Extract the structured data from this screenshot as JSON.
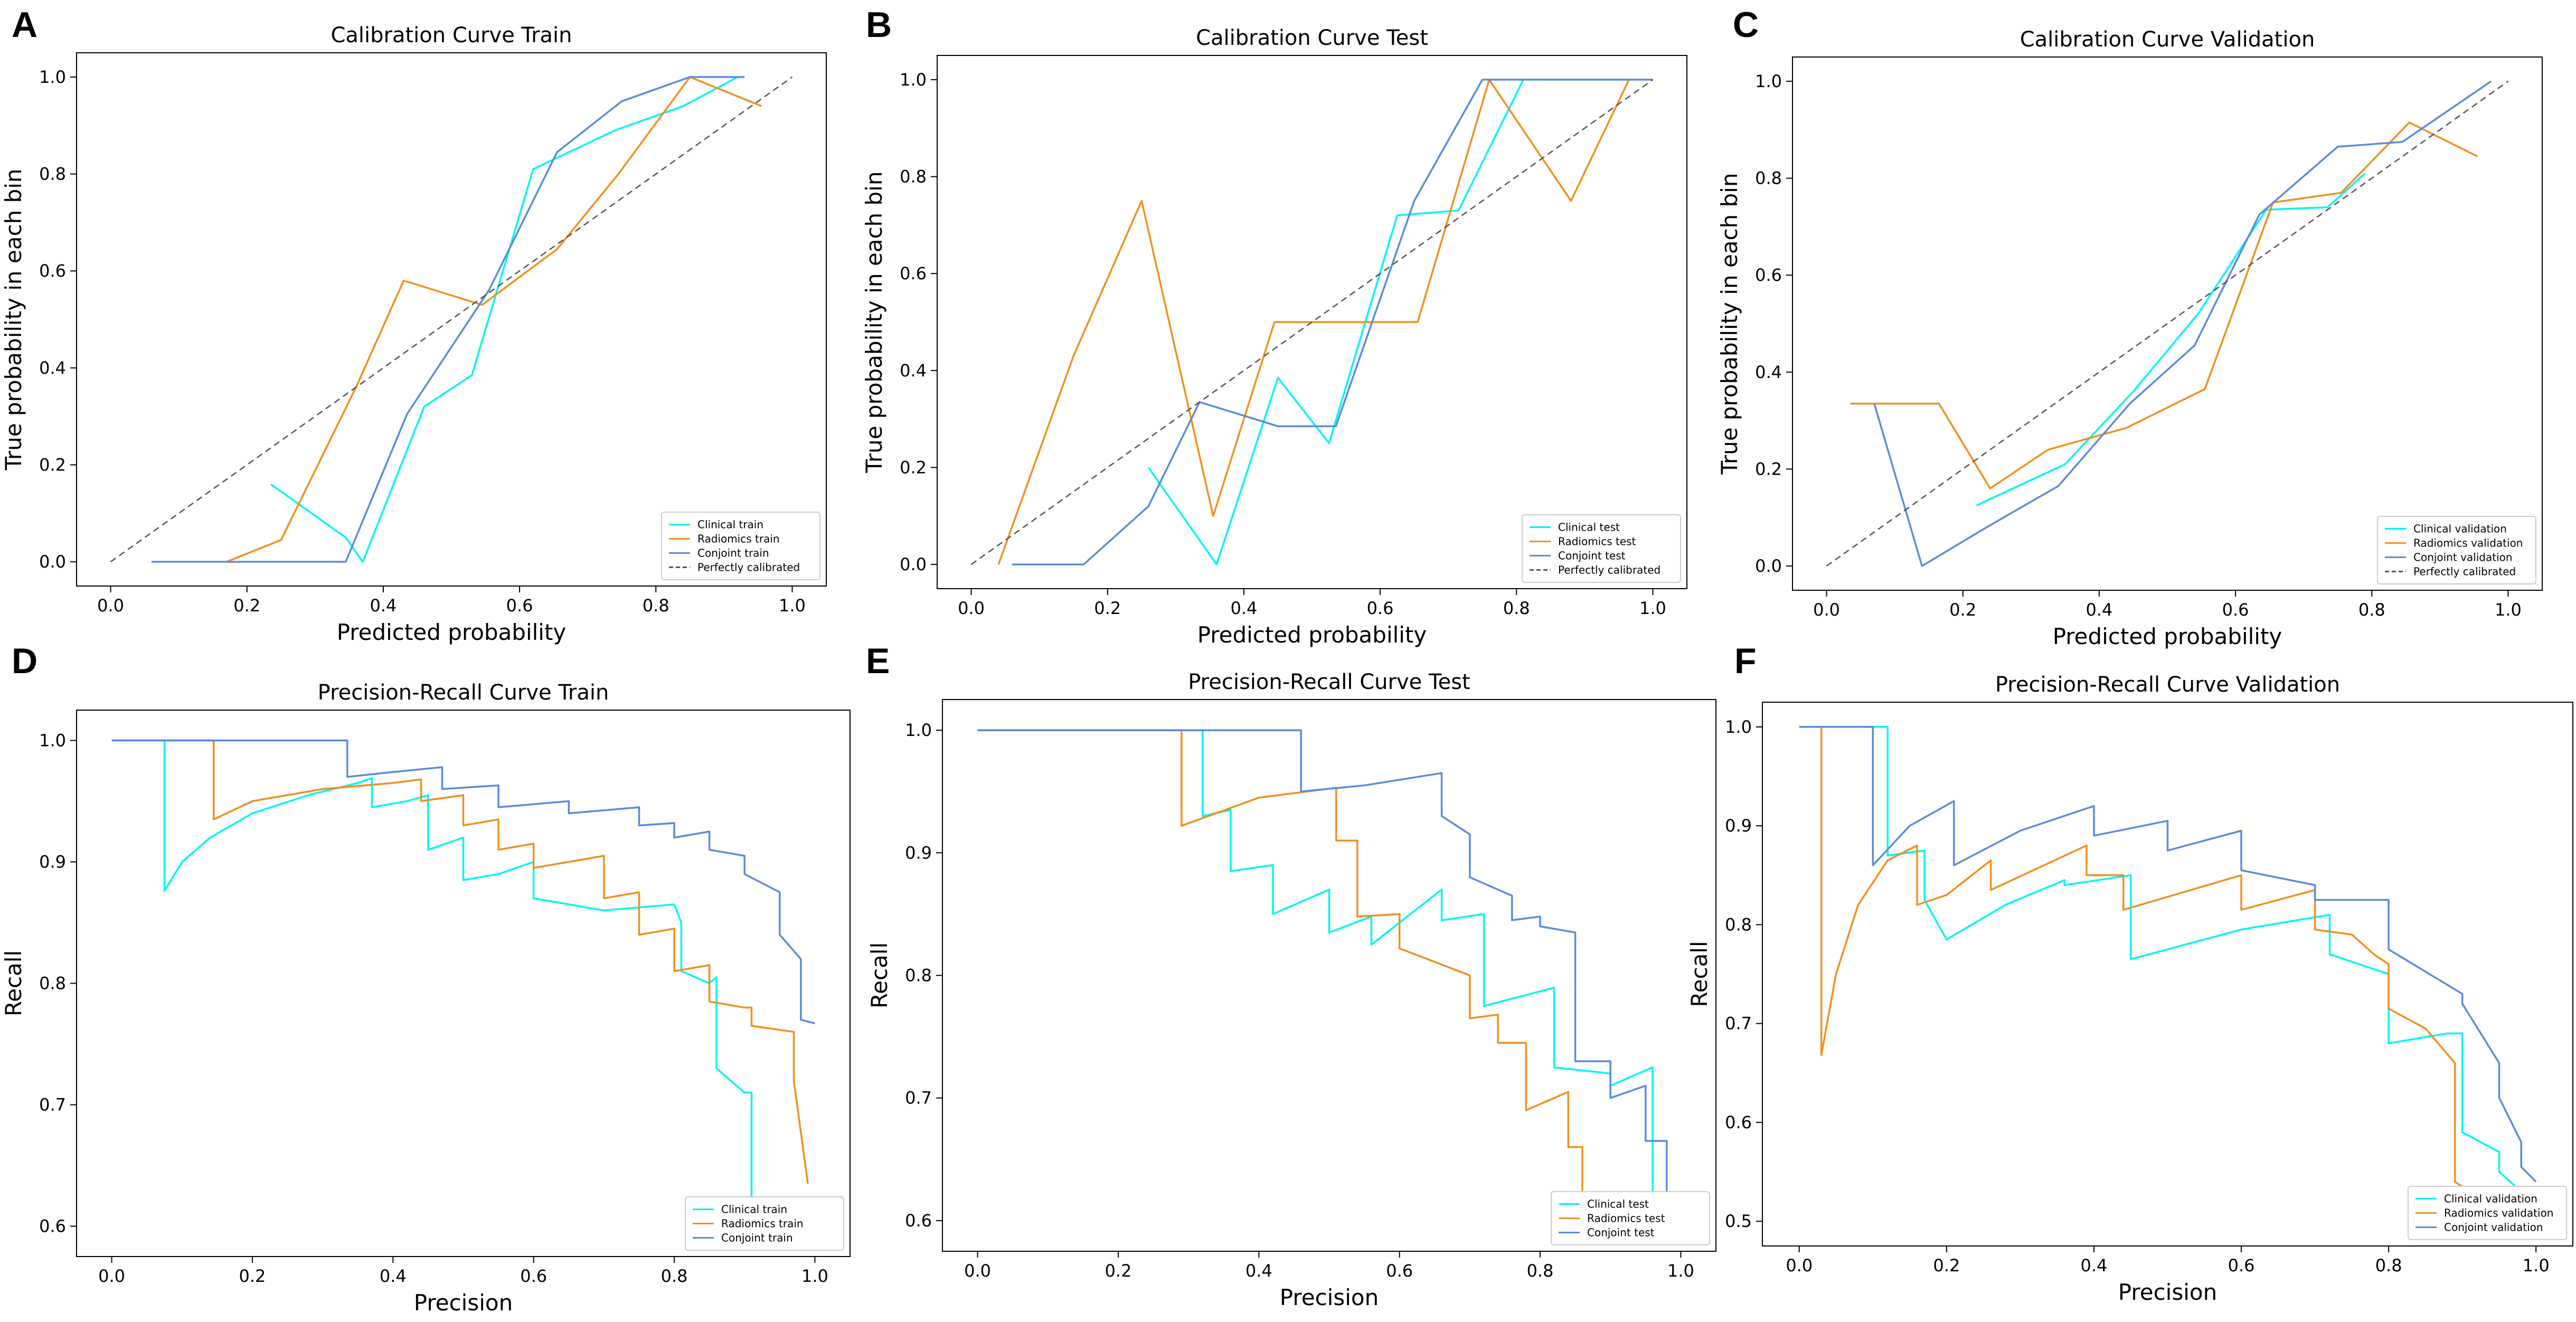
{
  "colors": {
    "clinical": "#00f5f5",
    "radiomics": "#f0901e",
    "conjoint": "#5b8bdc",
    "perfect": "#555555"
  },
  "chart_data": [
    {
      "letter": "A",
      "type": "line",
      "title": "Calibration Curve Train",
      "xlabel": "Predicted probability",
      "ylabel": "True probability in each bin",
      "xlim": [
        -0.05,
        1.05
      ],
      "ylim": [
        -0.05,
        1.05
      ],
      "xticks": [
        0.0,
        0.2,
        0.4,
        0.6,
        0.8,
        1.0
      ],
      "yticks": [
        0.0,
        0.2,
        0.4,
        0.6,
        0.8,
        1.0
      ],
      "xtick_labels": [
        "0.0",
        "0.2",
        "0.4",
        "0.6",
        "0.8",
        "1.0"
      ],
      "ytick_labels": [
        "0.0",
        "0.2",
        "0.4",
        "0.6",
        "0.8",
        "1.0"
      ],
      "legend_position": "bottom-right",
      "series": [
        {
          "name": "Clinical train",
          "key": "clinical",
          "x": [
            0.235,
            0.345,
            0.37,
            0.46,
            0.53,
            0.62,
            0.74,
            0.84,
            0.92
          ],
          "y": [
            0.16,
            0.05,
            0.0,
            0.32,
            0.385,
            0.81,
            0.89,
            0.94,
            1.0
          ]
        },
        {
          "name": "Radiomics train",
          "key": "radiomics",
          "x": [
            0.17,
            0.25,
            0.36,
            0.43,
            0.545,
            0.655,
            0.745,
            0.85,
            0.955
          ],
          "y": [
            0.0,
            0.045,
            0.36,
            0.58,
            0.53,
            0.645,
            0.8,
            1.0,
            0.94
          ]
        },
        {
          "name": "Conjoint train",
          "key": "conjoint",
          "x": [
            0.06,
            0.15,
            0.25,
            0.345,
            0.435,
            0.555,
            0.655,
            0.75,
            0.85,
            0.93
          ],
          "y": [
            0.0,
            0.0,
            0.0,
            0.0,
            0.305,
            0.56,
            0.845,
            0.95,
            1.0,
            1.0
          ]
        },
        {
          "name": "Perfectly calibrated",
          "key": "perfect",
          "dashed": true,
          "x": [
            0.0,
            1.0
          ],
          "y": [
            0.0,
            1.0
          ]
        }
      ]
    },
    {
      "letter": "B",
      "type": "line",
      "title": "Calibration Curve Test",
      "xlabel": "Predicted probability",
      "ylabel": "True probability in each bin",
      "xlim": [
        -0.05,
        1.05
      ],
      "ylim": [
        -0.05,
        1.05
      ],
      "xticks": [
        0.0,
        0.2,
        0.4,
        0.6,
        0.8,
        1.0
      ],
      "yticks": [
        0.0,
        0.2,
        0.4,
        0.6,
        0.8,
        1.0
      ],
      "xtick_labels": [
        "0.0",
        "0.2",
        "0.4",
        "0.6",
        "0.8",
        "1.0"
      ],
      "ytick_labels": [
        "0.0",
        "0.2",
        "0.4",
        "0.6",
        "0.8",
        "1.0"
      ],
      "legend_position": "bottom-right",
      "series": [
        {
          "name": "Clinical test",
          "key": "clinical",
          "x": [
            0.26,
            0.36,
            0.45,
            0.525,
            0.625,
            0.715,
            0.81,
            0.96
          ],
          "y": [
            0.2,
            0.0,
            0.385,
            0.25,
            0.72,
            0.73,
            1.0,
            1.0
          ]
        },
        {
          "name": "Radiomics test",
          "key": "radiomics",
          "x": [
            0.04,
            0.15,
            0.25,
            0.355,
            0.445,
            0.545,
            0.655,
            0.76,
            0.88,
            0.965
          ],
          "y": [
            0.0,
            0.43,
            0.75,
            0.1,
            0.5,
            0.5,
            0.5,
            1.0,
            0.75,
            1.0
          ]
        },
        {
          "name": "Conjoint test",
          "key": "conjoint",
          "x": [
            0.06,
            0.165,
            0.26,
            0.335,
            0.45,
            0.535,
            0.65,
            0.75,
            0.85,
            0.955,
            1.0
          ],
          "y": [
            0.0,
            0.0,
            0.12,
            0.335,
            0.285,
            0.285,
            0.75,
            1.0,
            1.0,
            1.0,
            1.0
          ]
        },
        {
          "name": "Perfectly calibrated",
          "key": "perfect",
          "dashed": true,
          "x": [
            0.0,
            1.0
          ],
          "y": [
            0.0,
            1.0
          ]
        }
      ]
    },
    {
      "letter": "C",
      "type": "line",
      "title": "Calibration Curve Validation",
      "xlabel": "Predicted probability",
      "ylabel": "True probability in each bin",
      "xlim": [
        -0.05,
        1.05
      ],
      "ylim": [
        -0.05,
        1.05
      ],
      "xticks": [
        0.0,
        0.2,
        0.4,
        0.6,
        0.8,
        1.0
      ],
      "yticks": [
        0.0,
        0.2,
        0.4,
        0.6,
        0.8,
        1.0
      ],
      "xtick_labels": [
        "0.0",
        "0.2",
        "0.4",
        "0.6",
        "0.8",
        "1.0"
      ],
      "ytick_labels": [
        "0.0",
        "0.2",
        "0.4",
        "0.6",
        "0.8",
        "1.0"
      ],
      "legend_position": "bottom-right",
      "series": [
        {
          "name": "Clinical validation",
          "key": "clinical",
          "x": [
            0.22,
            0.35,
            0.45,
            0.545,
            0.645,
            0.735,
            0.79
          ],
          "y": [
            0.125,
            0.21,
            0.36,
            0.52,
            0.735,
            0.74,
            0.81
          ]
        },
        {
          "name": "Radiomics validation",
          "key": "radiomics",
          "x": [
            0.035,
            0.165,
            0.24,
            0.325,
            0.44,
            0.555,
            0.655,
            0.755,
            0.855,
            0.955
          ],
          "y": [
            0.335,
            0.335,
            0.16,
            0.24,
            0.285,
            0.365,
            0.75,
            0.77,
            0.915,
            0.845
          ]
        },
        {
          "name": "Conjoint validation",
          "key": "conjoint",
          "x": [
            0.07,
            0.14,
            0.235,
            0.34,
            0.445,
            0.54,
            0.635,
            0.75,
            0.845,
            0.975
          ],
          "y": [
            0.335,
            0.0,
            0.08,
            0.165,
            0.335,
            0.455,
            0.725,
            0.865,
            0.875,
            1.0
          ]
        },
        {
          "name": "Perfectly calibrated",
          "key": "perfect",
          "dashed": true,
          "x": [
            0.0,
            1.0
          ],
          "y": [
            0.0,
            1.0
          ]
        }
      ]
    },
    {
      "letter": "D",
      "type": "line",
      "title": "Precision-Recall Curve Train",
      "xlabel": "Precision",
      "ylabel": "Recall",
      "xlim": [
        -0.05,
        1.05
      ],
      "ylim": [
        0.575,
        1.025
      ],
      "xticks": [
        0.0,
        0.2,
        0.4,
        0.6,
        0.8,
        1.0
      ],
      "yticks": [
        0.6,
        0.7,
        0.8,
        0.9,
        1.0
      ],
      "xtick_labels": [
        "0.0",
        "0.2",
        "0.4",
        "0.6",
        "0.8",
        "1.0"
      ],
      "ytick_labels": [
        "0.6",
        "0.7",
        "0.8",
        "0.9",
        "1.0"
      ],
      "legend_position": "bottom-right",
      "series": [
        {
          "name": "Clinical train",
          "key": "clinical",
          "x": [
            0.0,
            0.075,
            0.075,
            0.1,
            0.14,
            0.2,
            0.28,
            0.35,
            0.37,
            0.37,
            0.42,
            0.45,
            0.45,
            0.5,
            0.5,
            0.55,
            0.6,
            0.6,
            0.7,
            0.8,
            0.81,
            0.81,
            0.85,
            0.86,
            0.86,
            0.9,
            0.91,
            0.91,
            0.93
          ],
          "y": [
            1.0,
            1.0,
            0.876,
            0.9,
            0.92,
            0.94,
            0.955,
            0.965,
            0.969,
            0.945,
            0.95,
            0.955,
            0.91,
            0.92,
            0.885,
            0.89,
            0.9,
            0.87,
            0.86,
            0.865,
            0.85,
            0.81,
            0.8,
            0.805,
            0.73,
            0.71,
            0.71,
            0.6,
            0.59
          ]
        },
        {
          "name": "Radiomics train",
          "key": "radiomics",
          "x": [
            0.0,
            0.145,
            0.145,
            0.2,
            0.3,
            0.4,
            0.44,
            0.44,
            0.5,
            0.5,
            0.55,
            0.55,
            0.6,
            0.6,
            0.7,
            0.7,
            0.75,
            0.75,
            0.8,
            0.8,
            0.85,
            0.85,
            0.9,
            0.91,
            0.91,
            0.97,
            0.97,
            0.99
          ],
          "y": [
            1.0,
            1.0,
            0.935,
            0.95,
            0.96,
            0.965,
            0.968,
            0.95,
            0.955,
            0.93,
            0.935,
            0.91,
            0.915,
            0.895,
            0.905,
            0.87,
            0.875,
            0.84,
            0.845,
            0.81,
            0.815,
            0.785,
            0.78,
            0.78,
            0.765,
            0.76,
            0.72,
            0.635
          ]
        },
        {
          "name": "Conjoint train",
          "key": "conjoint",
          "x": [
            0.0,
            0.335,
            0.335,
            0.4,
            0.47,
            0.47,
            0.55,
            0.55,
            0.65,
            0.65,
            0.75,
            0.75,
            0.8,
            0.8,
            0.85,
            0.85,
            0.9,
            0.9,
            0.95,
            0.95,
            0.98,
            0.98,
            1.0
          ],
          "y": [
            1.0,
            1.0,
            0.97,
            0.974,
            0.978,
            0.96,
            0.963,
            0.945,
            0.95,
            0.94,
            0.945,
            0.93,
            0.932,
            0.92,
            0.925,
            0.91,
            0.905,
            0.89,
            0.875,
            0.84,
            0.82,
            0.77,
            0.767
          ]
        }
      ]
    },
    {
      "letter": "E",
      "type": "line",
      "title": "Precision-Recall Curve Test",
      "xlabel": "Precision",
      "ylabel": "Recall",
      "xlim": [
        -0.05,
        1.05
      ],
      "ylim": [
        0.575,
        1.025
      ],
      "xticks": [
        0.0,
        0.2,
        0.4,
        0.6,
        0.8,
        1.0
      ],
      "yticks": [
        0.6,
        0.7,
        0.8,
        0.9,
        1.0
      ],
      "xtick_labels": [
        "0.0",
        "0.2",
        "0.4",
        "0.6",
        "0.8",
        "1.0"
      ],
      "ytick_labels": [
        "0.6",
        "0.7",
        "0.8",
        "0.9",
        "1.0"
      ],
      "legend_position": "bottom-right",
      "series": [
        {
          "name": "Clinical test",
          "key": "clinical",
          "x": [
            0.0,
            0.32,
            0.32,
            0.36,
            0.36,
            0.42,
            0.42,
            0.5,
            0.5,
            0.56,
            0.56,
            0.66,
            0.66,
            0.72,
            0.72,
            0.82,
            0.82,
            0.9,
            0.9,
            0.96,
            0.96,
            0.99
          ],
          "y": [
            1.0,
            1.0,
            0.93,
            0.935,
            0.885,
            0.89,
            0.85,
            0.87,
            0.835,
            0.848,
            0.825,
            0.87,
            0.845,
            0.85,
            0.775,
            0.79,
            0.725,
            0.72,
            0.71,
            0.725,
            0.62,
            0.615
          ]
        },
        {
          "name": "Radiomics test",
          "key": "radiomics",
          "x": [
            0.0,
            0.29,
            0.29,
            0.4,
            0.51,
            0.51,
            0.54,
            0.54,
            0.6,
            0.6,
            0.7,
            0.7,
            0.74,
            0.74,
            0.78,
            0.78,
            0.84,
            0.84,
            0.86,
            0.86,
            0.99
          ],
          "y": [
            1.0,
            1.0,
            0.922,
            0.945,
            0.953,
            0.91,
            0.91,
            0.848,
            0.85,
            0.822,
            0.8,
            0.765,
            0.768,
            0.745,
            0.745,
            0.69,
            0.705,
            0.66,
            0.66,
            0.593,
            0.61
          ]
        },
        {
          "name": "Conjoint test",
          "key": "conjoint",
          "x": [
            0.0,
            0.46,
            0.46,
            0.55,
            0.66,
            0.66,
            0.7,
            0.7,
            0.76,
            0.76,
            0.8,
            0.8,
            0.85,
            0.85,
            0.9,
            0.9,
            0.95,
            0.95,
            0.98,
            0.98,
            1.0
          ],
          "y": [
            1.0,
            1.0,
            0.95,
            0.955,
            0.965,
            0.93,
            0.915,
            0.88,
            0.865,
            0.845,
            0.848,
            0.84,
            0.835,
            0.73,
            0.73,
            0.7,
            0.71,
            0.665,
            0.665,
            0.62,
            0.62
          ]
        }
      ]
    },
    {
      "letter": "F",
      "type": "line",
      "title": "Precision-Recall Curve Validation",
      "xlabel": "Precision",
      "ylabel": "Recall",
      "xlim": [
        -0.05,
        1.05
      ],
      "ylim": [
        0.475,
        1.025
      ],
      "xticks": [
        0.0,
        0.2,
        0.4,
        0.6,
        0.8,
        1.0
      ],
      "yticks": [
        0.5,
        0.6,
        0.7,
        0.8,
        0.9,
        1.0
      ],
      "xtick_labels": [
        "0.0",
        "0.2",
        "0.4",
        "0.6",
        "0.8",
        "1.0"
      ],
      "ytick_labels": [
        "0.5",
        "0.6",
        "0.7",
        "0.8",
        "0.9",
        "1.0"
      ],
      "legend_position": "bottom-right",
      "series": [
        {
          "name": "Clinical validation",
          "key": "clinical",
          "x": [
            0.0,
            0.12,
            0.12,
            0.17,
            0.17,
            0.2,
            0.28,
            0.36,
            0.36,
            0.45,
            0.45,
            0.6,
            0.72,
            0.72,
            0.8,
            0.8,
            0.88,
            0.9,
            0.9,
            0.95,
            0.95,
            0.98
          ],
          "y": [
            1.0,
            1.0,
            0.87,
            0.875,
            0.825,
            0.785,
            0.82,
            0.845,
            0.84,
            0.85,
            0.765,
            0.795,
            0.81,
            0.77,
            0.75,
            0.68,
            0.69,
            0.69,
            0.59,
            0.57,
            0.55,
            0.53
          ]
        },
        {
          "name": "Radiomics validation",
          "key": "radiomics",
          "x": [
            0.0,
            0.03,
            0.03,
            0.05,
            0.08,
            0.12,
            0.16,
            0.16,
            0.2,
            0.26,
            0.26,
            0.39,
            0.39,
            0.44,
            0.44,
            0.6,
            0.6,
            0.7,
            0.7,
            0.75,
            0.78,
            0.8,
            0.8,
            0.85,
            0.89,
            0.89,
            0.92
          ],
          "y": [
            1.0,
            1.0,
            0.668,
            0.75,
            0.82,
            0.865,
            0.88,
            0.82,
            0.83,
            0.865,
            0.835,
            0.88,
            0.85,
            0.85,
            0.815,
            0.85,
            0.815,
            0.835,
            0.795,
            0.79,
            0.77,
            0.76,
            0.715,
            0.695,
            0.66,
            0.54,
            0.525
          ]
        },
        {
          "name": "Conjoint validation",
          "key": "conjoint",
          "x": [
            0.0,
            0.1,
            0.1,
            0.15,
            0.21,
            0.21,
            0.3,
            0.4,
            0.4,
            0.5,
            0.5,
            0.6,
            0.6,
            0.7,
            0.7,
            0.8,
            0.8,
            0.9,
            0.9,
            0.95,
            0.95,
            0.98,
            0.98,
            1.0
          ],
          "y": [
            1.0,
            1.0,
            0.86,
            0.9,
            0.925,
            0.86,
            0.895,
            0.92,
            0.89,
            0.905,
            0.875,
            0.895,
            0.855,
            0.84,
            0.825,
            0.825,
            0.775,
            0.73,
            0.72,
            0.66,
            0.625,
            0.58,
            0.555,
            0.54
          ]
        }
      ]
    }
  ]
}
